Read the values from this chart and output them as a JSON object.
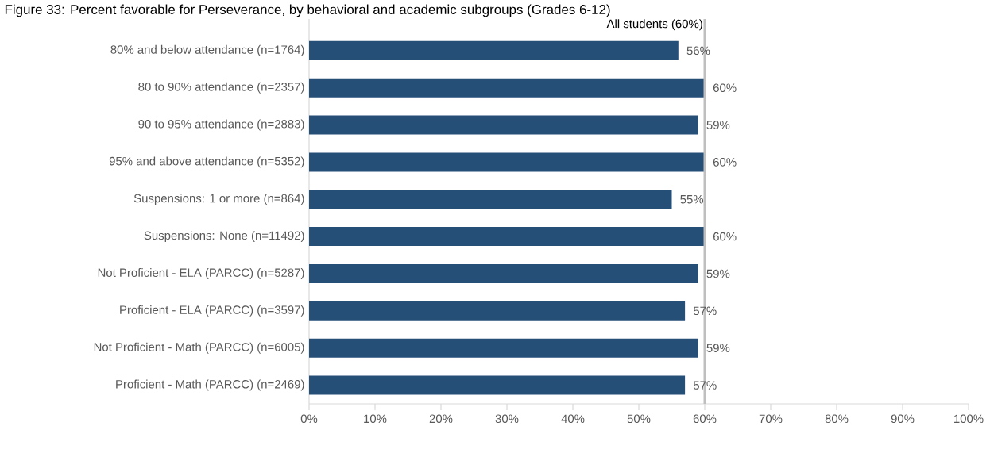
{
  "chart_data": {
    "type": "bar",
    "orientation": "horizontal",
    "title": "Figure 33: Percent favorable for Perseverance, by behavioral and academic subgroups (Grades 6-12)",
    "categories": [
      "80% and below attendance (n=1764)",
      "80 to 90% attendance (n=2357)",
      "90 to 95% attendance (n=2883)",
      "95% and above attendance (n=5352)",
      "Suspensions: 1 or more (n=864)",
      "Suspensions: None (n=11492)",
      "Not Proficient - ELA (PARCC) (n=5287)",
      "Proficient - ELA (PARCC) (n=3597)",
      "Not Proficient - Math (PARCC) (n=6005)",
      "Proficient - Math (PARCC) (n=2469)"
    ],
    "values": [
      56,
      60,
      59,
      60,
      55,
      60,
      59,
      57,
      59,
      57
    ],
    "value_labels": [
      "56%",
      "60%",
      "59%",
      "60%",
      "55%",
      "60%",
      "59%",
      "57%",
      "59%",
      "57%"
    ],
    "color": "#264f78",
    "xlim": [
      0,
      100
    ],
    "xticks": [
      {
        "value": 0,
        "label": "0%"
      },
      {
        "value": 10,
        "label": "10%"
      },
      {
        "value": 20,
        "label": "20%"
      },
      {
        "value": 30,
        "label": "30%"
      },
      {
        "value": 40,
        "label": "40%"
      },
      {
        "value": 50,
        "label": "50%"
      },
      {
        "value": 60,
        "label": "60%"
      },
      {
        "value": 70,
        "label": "70%"
      },
      {
        "value": 80,
        "label": "80%"
      },
      {
        "value": 90,
        "label": "90%"
      },
      {
        "value": 100,
        "label": "100%"
      }
    ],
    "ref_lines": [
      {
        "axis": "x",
        "value": 60,
        "label": "All students (60%)",
        "color": "#bfbfbf"
      }
    ],
    "grid": false
  }
}
